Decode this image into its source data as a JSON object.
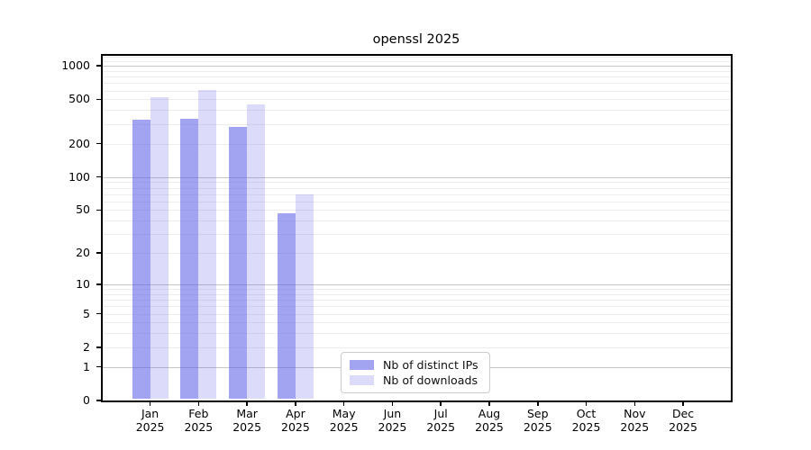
{
  "title": "openssl 2025",
  "colors": {
    "background": "#ffffff",
    "spine": "#000000",
    "text": "#000000",
    "grid_major": "#c6c6c6",
    "grid_minor": "#ededed",
    "legend_border": "#cccccc",
    "series_base": "#5a5ce6"
  },
  "chart_data": {
    "type": "bar",
    "title": "openssl 2025",
    "categories": [
      "Jan 2025",
      "Feb 2025",
      "Mar 2025",
      "Apr 2025",
      "May 2025",
      "Jun 2025",
      "Jul 2025",
      "Aug 2025",
      "Sep 2025",
      "Oct 2025",
      "Nov 2025",
      "Dec 2025"
    ],
    "month_labels": [
      {
        "month": "Jan",
        "year": "2025"
      },
      {
        "month": "Feb",
        "year": "2025"
      },
      {
        "month": "Mar",
        "year": "2025"
      },
      {
        "month": "Apr",
        "year": "2025"
      },
      {
        "month": "May",
        "year": "2025"
      },
      {
        "month": "Jun",
        "year": "2025"
      },
      {
        "month": "Jul",
        "year": "2025"
      },
      {
        "month": "Aug",
        "year": "2025"
      },
      {
        "month": "Sep",
        "year": "2025"
      },
      {
        "month": "Oct",
        "year": "2025"
      },
      {
        "month": "Nov",
        "year": "2025"
      },
      {
        "month": "Dec",
        "year": "2025"
      }
    ],
    "series": [
      {
        "name": "Nb of distinct IPs",
        "color": "#5a5ce6",
        "alpha": 0.56,
        "values": [
          330,
          337,
          284,
          47,
          0,
          0,
          0,
          0,
          0,
          0,
          0,
          0
        ]
      },
      {
        "name": "Nb of downloads",
        "color": "#5a5ce6",
        "alpha": 0.21,
        "values": [
          525,
          605,
          450,
          70,
          0,
          0,
          0,
          0,
          0,
          0,
          0,
          0
        ]
      }
    ],
    "yscale": "log10(value+1)",
    "yticks": [
      0,
      1,
      2,
      5,
      10,
      20,
      50,
      100,
      200,
      500,
      1000
    ],
    "ylim": [
      0,
      1260
    ],
    "grid": "horizontal",
    "grid_major_values": [
      1,
      10,
      100,
      1000
    ],
    "grid_minor_values": [
      2,
      3,
      4,
      5,
      6,
      7,
      8,
      9,
      20,
      30,
      40,
      50,
      60,
      70,
      80,
      90,
      200,
      300,
      400,
      500,
      600,
      700,
      800,
      900,
      1100,
      1200
    ],
    "legend_position": "inside-bottom-center"
  }
}
